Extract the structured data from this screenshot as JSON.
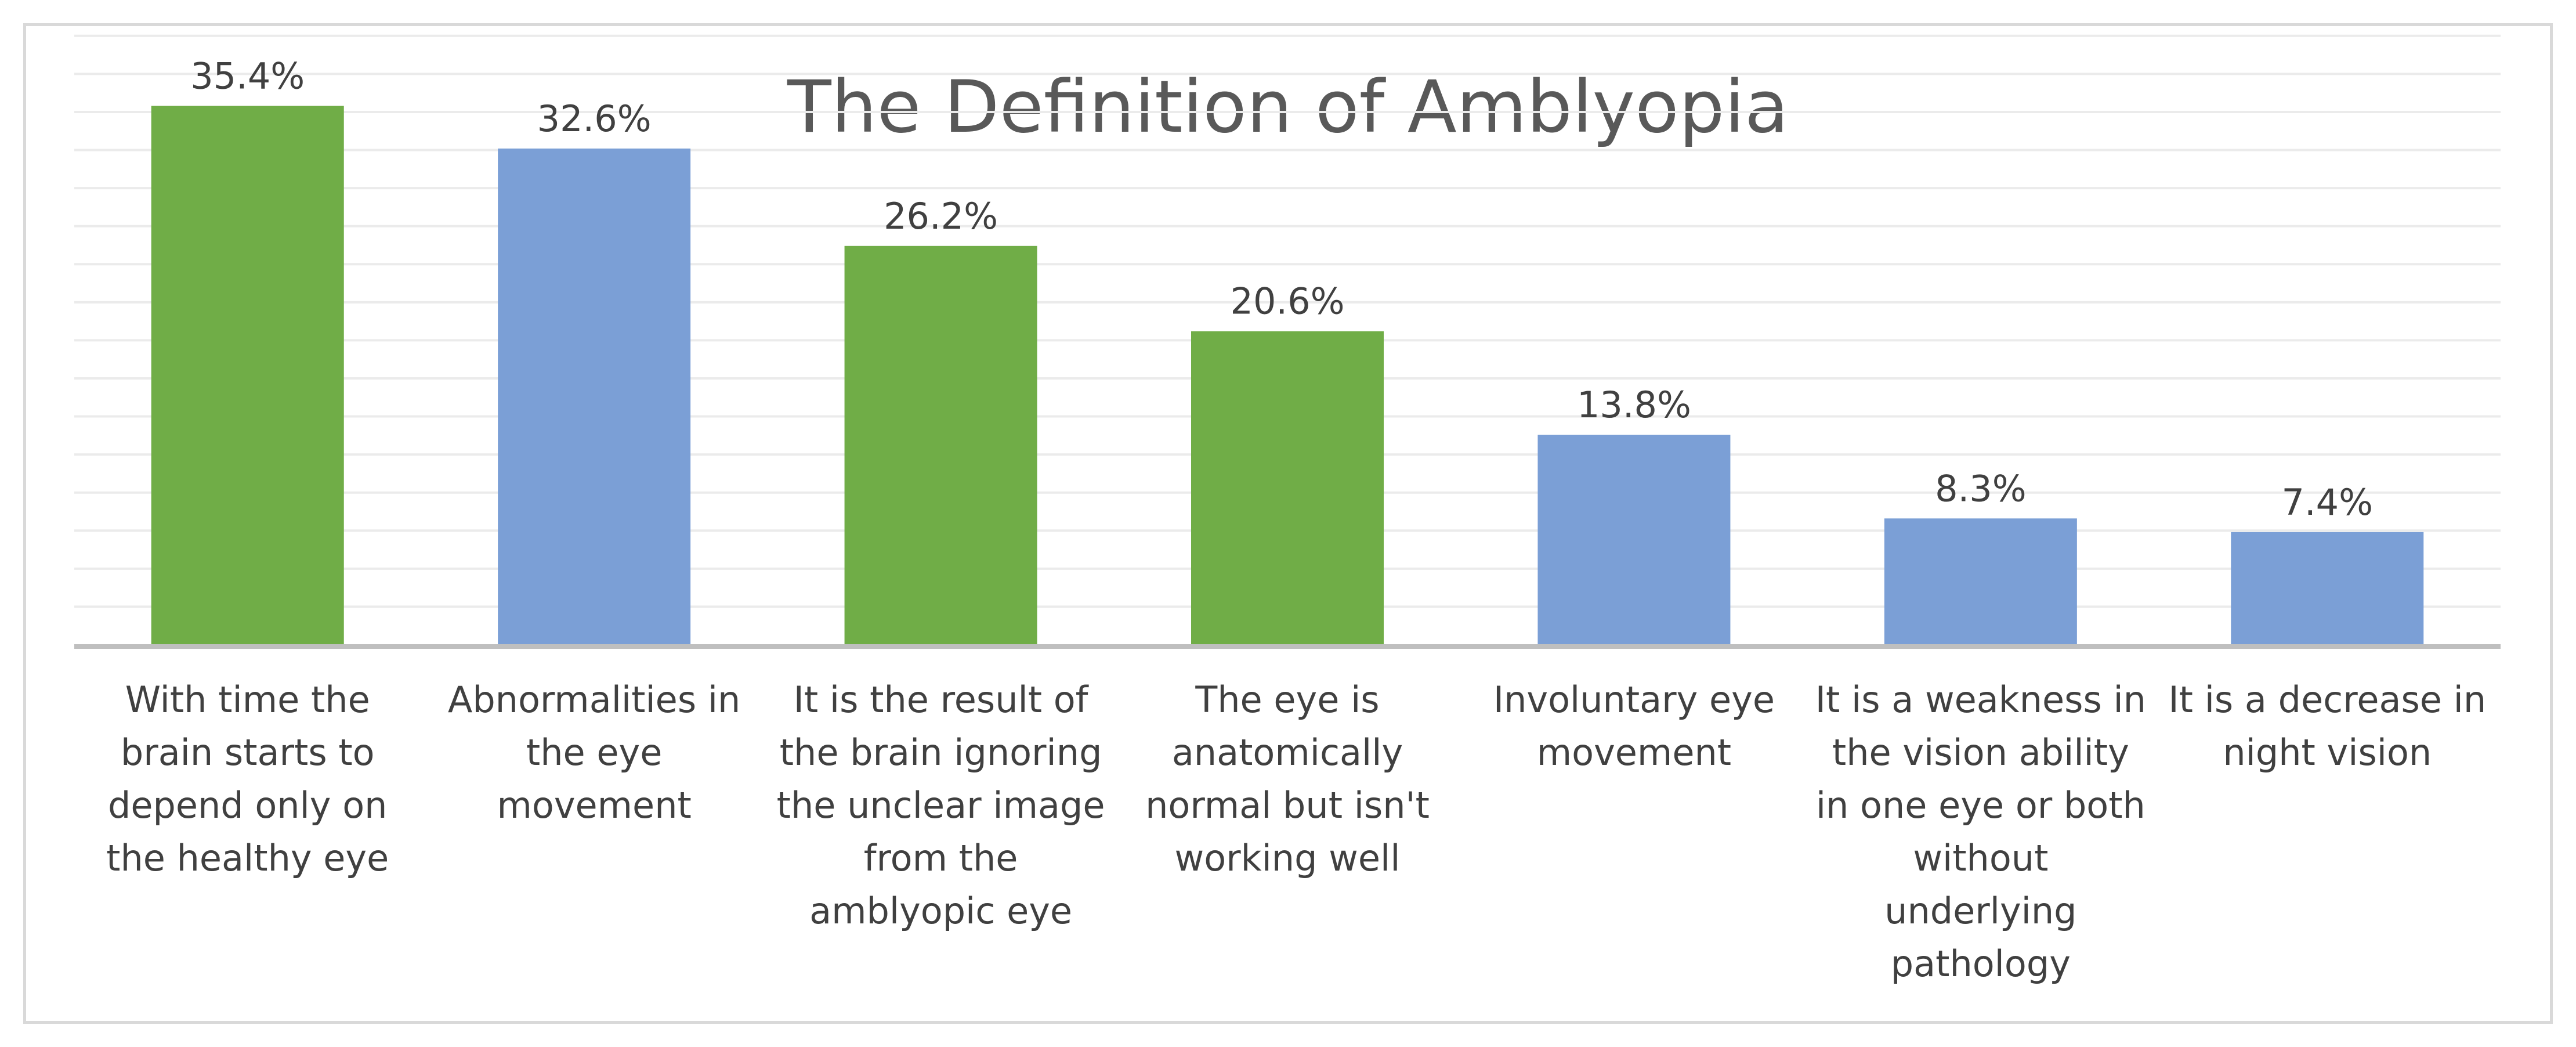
{
  "chart_data": {
    "type": "bar",
    "title": "The Definition of Amblyopia",
    "xlabel": "",
    "ylabel": "",
    "ylim": [
      0,
      40
    ],
    "grid": true,
    "legend": "none",
    "value_suffix": "%",
    "categories": [
      "With time the brain starts to depend only on the healthy eye",
      "Abnormalities in the eye movement",
      "It is the result of the brain ignoring the unclear image from the amblyopic eye",
      "The eye is anatomically normal but isn't working well",
      "Involuntary eye movement",
      "It is a weakness in the vision ability in one eye or both without underlying pathology",
      "It is a decrease in night vision"
    ],
    "category_lines": [
      [
        "With time the",
        "brain starts to",
        "depend only on",
        "the healthy eye"
      ],
      [
        "Abnormalities in",
        "the eye",
        "movement"
      ],
      [
        "It is the result of",
        "the brain ignoring",
        "the unclear image",
        "from the",
        "amblyopic eye"
      ],
      [
        "The eye is",
        "anatomically",
        "normal but isn't",
        "working well"
      ],
      [
        "Involuntary eye",
        "movement"
      ],
      [
        "It is a weakness in",
        "the vision ability",
        "in one eye or both",
        "without",
        "underlying",
        "pathology"
      ],
      [
        "It is a decrease in",
        "night vision"
      ]
    ],
    "values": [
      35.4,
      32.6,
      26.2,
      20.6,
      13.8,
      8.3,
      7.4
    ],
    "data_labels": [
      "35.4%",
      "32.6%",
      "26.2%",
      "20.6%",
      "13.8%",
      "8.3%",
      "7.4%"
    ],
    "bar_colors": [
      "#70ad47",
      "#7b9fd6",
      "#70ad47",
      "#70ad47",
      "#7b9fd6",
      "#7b9fd6",
      "#7b9fd6"
    ]
  },
  "colors": {
    "green": "#70ad47",
    "blue": "#7b9fd6",
    "gridline": "#ebebeb",
    "axis": "#bfbfbf",
    "frame": "#d9d9d9",
    "text": "#404040",
    "title": "#595959"
  }
}
